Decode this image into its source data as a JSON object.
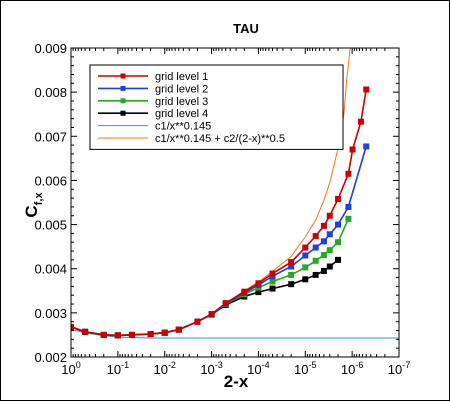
{
  "chart_data": {
    "type": "line",
    "title": "TAU",
    "xlabel": "2-x",
    "ylabel": "C",
    "ylabel_subscript": "f,x",
    "x_scale": "log",
    "x_reversed": true,
    "xlim": [
      1,
      1e-07
    ],
    "ylim": [
      0.002,
      0.009
    ],
    "x_ticks": [
      {
        "value": 1,
        "base": "10",
        "exp": "0"
      },
      {
        "value": 0.1,
        "base": "10",
        "exp": "-1"
      },
      {
        "value": 0.01,
        "base": "10",
        "exp": "-2"
      },
      {
        "value": 0.001,
        "base": "10",
        "exp": "-3"
      },
      {
        "value": 0.0001,
        "base": "10",
        "exp": "-4"
      },
      {
        "value": 1e-05,
        "base": "10",
        "exp": "-5"
      },
      {
        "value": 1e-06,
        "base": "10",
        "exp": "-6"
      },
      {
        "value": 1e-07,
        "base": "10",
        "exp": "-7"
      }
    ],
    "y_ticks": [
      "0.002",
      "0.003",
      "0.004",
      "0.005",
      "0.006",
      "0.007",
      "0.008",
      "0.009"
    ],
    "legend_position": "top-left",
    "series": [
      {
        "name": "grid level 1",
        "color": "#cc0000",
        "marker": "square",
        "x": [
          1,
          0.5,
          0.2,
          0.1,
          0.05,
          0.02,
          0.01,
          0.005,
          0.002,
          0.001,
          0.0005,
          0.0002,
          0.0001,
          5e-05,
          2e-05,
          1e-05,
          6e-06,
          4e-06,
          3e-06,
          2e-06,
          1.2e-06,
          9.8e-07,
          6.5e-07,
          5e-07
        ],
        "y": [
          0.00268,
          0.00257,
          0.0025,
          0.00249,
          0.0025,
          0.00252,
          0.00255,
          0.00262,
          0.0028,
          0.00297,
          0.00322,
          0.00348,
          0.00367,
          0.00389,
          0.00415,
          0.00448,
          0.00474,
          0.00497,
          0.0052,
          0.00558,
          0.00615,
          0.0067,
          0.00733,
          0.00806
        ]
      },
      {
        "name": "grid level 2",
        "color": "#1f3fe0",
        "marker": "square",
        "x": [
          1,
          0.5,
          0.2,
          0.1,
          0.05,
          0.02,
          0.01,
          0.005,
          0.002,
          0.001,
          0.0005,
          0.0002,
          0.0001,
          5e-05,
          2e-05,
          1e-05,
          6e-06,
          4e-06,
          3e-06,
          2e-06,
          1.2e-06,
          5e-07
        ],
        "y": [
          0.00268,
          0.00257,
          0.0025,
          0.00249,
          0.0025,
          0.00252,
          0.00255,
          0.00262,
          0.0028,
          0.00297,
          0.00321,
          0.00345,
          0.00363,
          0.00383,
          0.00405,
          0.0043,
          0.00448,
          0.00462,
          0.00478,
          0.005,
          0.0054,
          0.00677
        ]
      },
      {
        "name": "grid level 3",
        "color": "#22aa22",
        "marker": "square",
        "x": [
          1,
          0.5,
          0.2,
          0.1,
          0.05,
          0.02,
          0.01,
          0.005,
          0.002,
          0.001,
          0.0005,
          0.0002,
          0.0001,
          5e-05,
          2e-05,
          1e-05,
          6e-06,
          4e-06,
          3e-06,
          2e-06,
          1.2e-06
        ],
        "y": [
          0.00268,
          0.00257,
          0.0025,
          0.00249,
          0.0025,
          0.00252,
          0.00255,
          0.00262,
          0.0028,
          0.00297,
          0.0032,
          0.00342,
          0.00357,
          0.00371,
          0.00386,
          0.00403,
          0.00418,
          0.00431,
          0.00442,
          0.0046,
          0.00513
        ]
      },
      {
        "name": "grid level 4",
        "color": "#000000",
        "marker": "square",
        "x": [
          1,
          0.5,
          0.2,
          0.1,
          0.05,
          0.02,
          0.01,
          0.005,
          0.002,
          0.001,
          0.0005,
          0.0002,
          0.0001,
          5e-05,
          2e-05,
          1e-05,
          6e-06,
          4e-06,
          3e-06,
          2e-06
        ],
        "y": [
          0.00268,
          0.00257,
          0.0025,
          0.00249,
          0.0025,
          0.00252,
          0.00255,
          0.00262,
          0.0028,
          0.00296,
          0.00318,
          0.00337,
          0.00347,
          0.00355,
          0.00365,
          0.00376,
          0.00386,
          0.00395,
          0.00405,
          0.0042
        ]
      },
      {
        "name": "c1/x**0.145",
        "color": "#3399cc",
        "marker": "none",
        "x": [
          1,
          0.5,
          0.2,
          0.1,
          0.05,
          0.02,
          0.01,
          0.001,
          0.0001,
          1e-05,
          1e-06,
          1e-07
        ],
        "y": [
          0.00262,
          0.00255,
          0.00248,
          0.00245,
          0.00244,
          0.00243,
          0.00243,
          0.00243,
          0.00243,
          0.00243,
          0.00243,
          0.00243
        ]
      },
      {
        "name": "c1/x**0.145 + c2/(2-x)**0.5",
        "color": "#ee7722",
        "marker": "none",
        "x": [
          1,
          0.5,
          0.2,
          0.1,
          0.05,
          0.02,
          0.01,
          0.005,
          0.002,
          0.001,
          0.0005,
          0.0002,
          0.0001,
          5e-05,
          2e-05,
          1e-05,
          6e-06,
          4e-06,
          3e-06,
          2e-06,
          1.5e-06,
          1.3e-06,
          1.1e-06
        ],
        "y": [
          0.0027,
          0.00258,
          0.00251,
          0.0025,
          0.00251,
          0.00253,
          0.00256,
          0.00263,
          0.00281,
          0.00298,
          0.00322,
          0.0035,
          0.0037,
          0.00394,
          0.00428,
          0.00472,
          0.0051,
          0.00555,
          0.00595,
          0.00672,
          0.0075,
          0.0083,
          0.009
        ]
      }
    ]
  }
}
